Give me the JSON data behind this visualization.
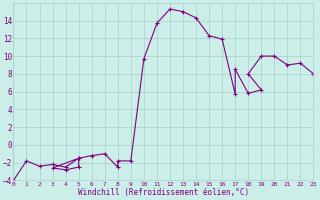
{
  "xlabel": "Windchill (Refroidissement éolien,°C)",
  "line_color": "#800080",
  "bg_color": "#cceee8",
  "grid_color": "#aacccc",
  "xlim": [
    0,
    23
  ],
  "ylim": [
    -4,
    16
  ],
  "xticks": [
    0,
    1,
    2,
    3,
    4,
    5,
    6,
    7,
    8,
    9,
    10,
    11,
    12,
    13,
    14,
    15,
    16,
    17,
    18,
    19,
    20,
    21,
    22,
    23
  ],
  "yticks": [
    -4,
    -2,
    0,
    2,
    4,
    6,
    8,
    10,
    12,
    14
  ],
  "x": [
    0,
    1,
    2,
    3,
    4,
    5,
    3,
    4,
    5,
    5,
    6,
    7,
    8,
    8,
    9,
    10,
    11,
    12,
    13,
    14,
    15,
    16,
    17,
    17,
    18,
    19,
    18,
    19,
    20,
    21,
    22,
    23
  ],
  "y": [
    -4,
    -1.8,
    -2.4,
    -2.2,
    -2.5,
    -1.5,
    -2.6,
    -2.8,
    -2.5,
    -1.5,
    -1.2,
    -1.0,
    -2.5,
    -1.8,
    -1.8,
    9.7,
    13.7,
    15.3,
    15.0,
    14.3,
    12.3,
    11.9,
    5.7,
    8.5,
    5.8,
    6.2,
    8.0,
    10.0,
    10.0,
    9.0,
    9.2,
    8.0
  ]
}
